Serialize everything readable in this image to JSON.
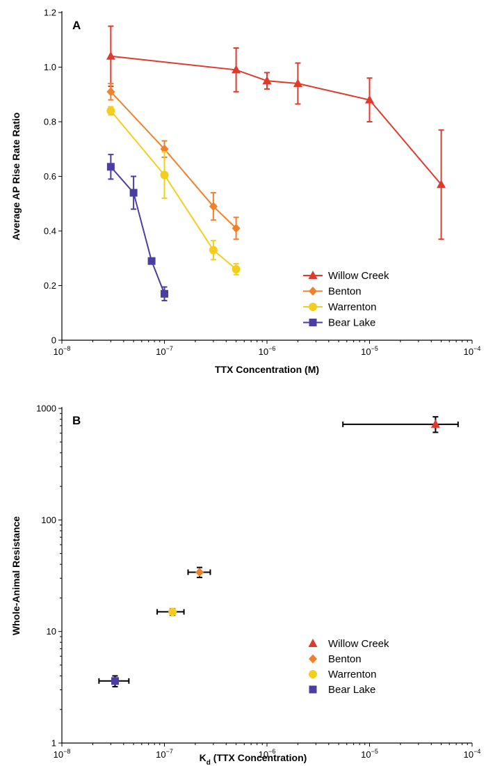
{
  "chart_data": [
    {
      "panel": "A",
      "type": "line",
      "xlabel": "TTX Concentration (M)",
      "ylabel": "Average AP Rise Rate Ratio",
      "x_scale": "log",
      "xlim": [
        1e-08,
        0.0001
      ],
      "ylim": [
        0,
        1.2
      ],
      "x_ticks": [
        {
          "value": 1e-08,
          "base": "10",
          "exp": "−8"
        },
        {
          "value": 1e-07,
          "base": "10",
          "exp": "−7"
        },
        {
          "value": 1e-06,
          "base": "10",
          "exp": "−6"
        },
        {
          "value": 1e-05,
          "base": "10",
          "exp": "−5"
        },
        {
          "value": 0.0001,
          "base": "10",
          "exp": "−4"
        }
      ],
      "y_ticks": [
        {
          "value": 0,
          "label": "0"
        },
        {
          "value": 0.2,
          "label": "0.2"
        },
        {
          "value": 0.4,
          "label": "0.4"
        },
        {
          "value": 0.6,
          "label": "0.6"
        },
        {
          "value": 0.8,
          "label": "0.8"
        },
        {
          "value": 1.0,
          "label": "1.0"
        },
        {
          "value": 1.2,
          "label": "1.2"
        }
      ],
      "legend_position": "bottom-right",
      "series": [
        {
          "name": "Willow Creek",
          "color": "#e03a2a",
          "marker": "triangle",
          "points": [
            {
              "x": 3e-08,
              "y": 1.04,
              "err": 0.11
            },
            {
              "x": 5e-07,
              "y": 0.99,
              "err": 0.08
            },
            {
              "x": 1e-06,
              "y": 0.95,
              "err": 0.03
            },
            {
              "x": 2e-06,
              "y": 0.94,
              "err": 0.075
            },
            {
              "x": 1e-05,
              "y": 0.88,
              "err": 0.08
            },
            {
              "x": 5e-05,
              "y": 0.57,
              "err": 0.2
            }
          ]
        },
        {
          "name": "Benton",
          "color": "#f0802a",
          "marker": "diamond",
          "points": [
            {
              "x": 3e-08,
              "y": 0.91,
              "err": 0.03
            },
            {
              "x": 1e-07,
              "y": 0.7,
              "err": 0.03
            },
            {
              "x": 3e-07,
              "y": 0.49,
              "err": 0.05
            },
            {
              "x": 5e-07,
              "y": 0.41,
              "err": 0.04
            }
          ]
        },
        {
          "name": "Warrenton",
          "color": "#f5cd1e",
          "marker": "circle",
          "points": [
            {
              "x": 3e-08,
              "y": 0.84,
              "err": 0.015
            },
            {
              "x": 1e-07,
              "y": 0.605,
              "err": 0.085
            },
            {
              "x": 3e-07,
              "y": 0.33,
              "err": 0.035
            },
            {
              "x": 5e-07,
              "y": 0.26,
              "err": 0.02
            }
          ]
        },
        {
          "name": "Bear Lake",
          "color": "#4a3ea0",
          "marker": "square",
          "points": [
            {
              "x": 3e-08,
              "y": 0.635,
              "err": 0.045
            },
            {
              "x": 5e-08,
              "y": 0.54,
              "err": 0.06
            },
            {
              "x": 7.5e-08,
              "y": 0.29,
              "err": 0.0
            },
            {
              "x": 1e-07,
              "y": 0.17,
              "err": 0.025
            }
          ]
        }
      ]
    },
    {
      "panel": "B",
      "type": "scatter",
      "xlabel_main": "K",
      "xlabel_sub": "d",
      "xlabel_rest": " (TTX Concentration)",
      "ylabel": "Whole-Animal Resistance",
      "x_scale": "log",
      "y_scale": "log",
      "xlim": [
        1e-08,
        0.0001
      ],
      "ylim": [
        1,
        1000
      ],
      "x_ticks": [
        {
          "value": 1e-08,
          "base": "10",
          "exp": "−8"
        },
        {
          "value": 1e-07,
          "base": "10",
          "exp": "−7"
        },
        {
          "value": 1e-06,
          "base": "10",
          "exp": "−6"
        },
        {
          "value": 1e-05,
          "base": "10",
          "exp": "−5"
        },
        {
          "value": 0.0001,
          "base": "10",
          "exp": "−4"
        }
      ],
      "y_ticks": [
        {
          "value": 1,
          "label": "1"
        },
        {
          "value": 10,
          "label": "10"
        },
        {
          "value": 100,
          "label": "100"
        },
        {
          "value": 1000,
          "label": "1000"
        }
      ],
      "legend_position": "bottom-right",
      "series": [
        {
          "name": "Willow Creek",
          "color": "#e03a2a",
          "marker": "triangle",
          "points": [
            {
              "x": 4.4e-05,
              "y": 720,
              "xerr": [
                5.5e-06,
                7.3e-05
              ],
              "yerr": [
                610,
                840
              ]
            }
          ]
        },
        {
          "name": "Benton",
          "color": "#f0802a",
          "marker": "diamond",
          "points": [
            {
              "x": 2.2e-07,
              "y": 34,
              "xerr": [
                1.7e-07,
                2.8e-07
              ],
              "yerr": [
                30.5,
                37.5
              ]
            }
          ]
        },
        {
          "name": "Warrenton",
          "color": "#f5cd1e",
          "marker": "circle",
          "points": [
            {
              "x": 1.2e-07,
              "y": 15,
              "xerr": [
                8.5e-08,
                1.55e-07
              ],
              "yerr": [
                14,
                16
              ]
            }
          ]
        },
        {
          "name": "Bear Lake",
          "color": "#4a3ea0",
          "marker": "square",
          "points": [
            {
              "x": 3.3e-08,
              "y": 3.6,
              "xerr": [
                2.3e-08,
                4.5e-08
              ],
              "yerr": [
                3.2,
                4.0
              ]
            }
          ]
        }
      ]
    }
  ]
}
